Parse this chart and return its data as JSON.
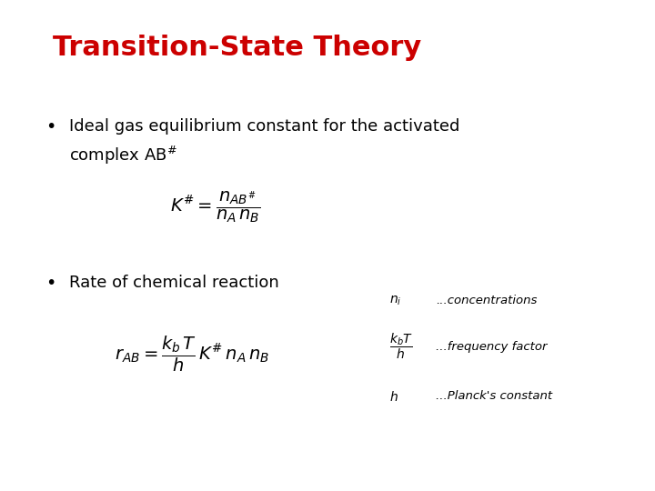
{
  "title": "Transition-State Theory",
  "title_color": "#cc0000",
  "title_fontsize": 22,
  "title_bold": true,
  "bg_color": "#ffffff",
  "bullet1_line1": "Ideal gas equilibrium constant for the activated",
  "bullet1_line2": "complex AB",
  "bullet2_text": "Rate of chemical reaction",
  "bullet_fontsize": 13,
  "eq1_fontsize": 13,
  "eq2_fontsize": 13,
  "legend_fontsize": 9.5
}
